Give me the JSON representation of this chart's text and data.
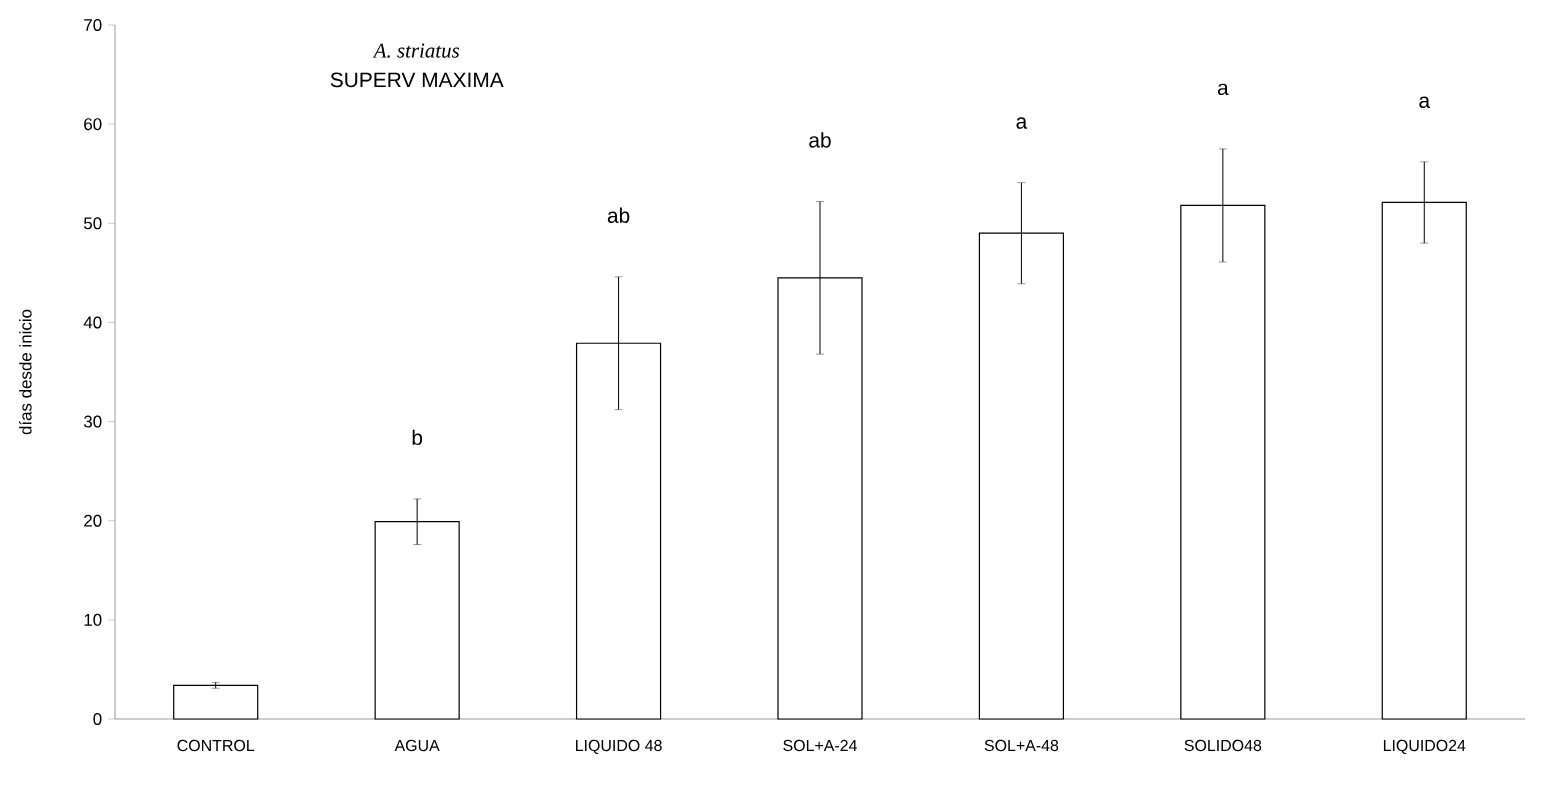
{
  "chart_data": {
    "type": "bar",
    "title": "A. striatus",
    "subtitle": "SUPERV MAXIMA",
    "ylabel": "días desde inicio",
    "categories": [
      "CONTROL",
      "AGUA",
      "LIQUIDO 48",
      "SOL+A-24",
      "SOL+A-48",
      "SOLIDO48",
      "LIQUIDO24"
    ],
    "values": [
      3.4,
      19.9,
      37.9,
      44.5,
      49.0,
      51.8,
      52.1
    ],
    "errors": [
      0.3,
      2.3,
      6.7,
      7.7,
      5.1,
      5.7,
      4.1
    ],
    "color": "#ffffff",
    "ylim": [
      0,
      70
    ],
    "yticks": [
      0,
      10,
      20,
      30,
      40,
      50,
      60,
      70
    ],
    "grid": false,
    "annotations": [
      "b",
      "ab",
      "ab",
      "a",
      "a",
      "a"
    ]
  }
}
